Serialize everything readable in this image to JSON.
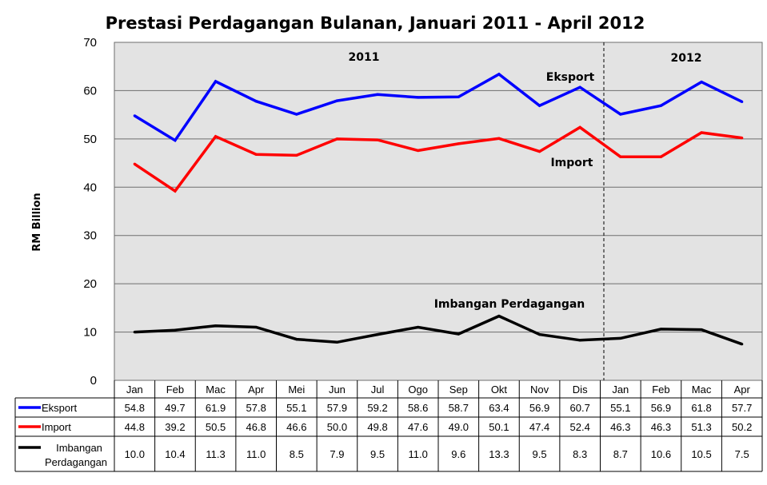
{
  "chart_data": {
    "type": "line",
    "title": "Prestasi Perdagangan Bulanan, Januari 2011 - April 2012",
    "ylabel": "RM Billion",
    "ylim": [
      0,
      70
    ],
    "yticks": [
      0,
      10,
      20,
      30,
      40,
      50,
      60,
      70
    ],
    "grid": true,
    "categories": [
      "Jan",
      "Feb",
      "Mac",
      "Apr",
      "Mei",
      "Jun",
      "Jul",
      "Ogo",
      "Sep",
      "Okt",
      "Nov",
      "Dis",
      "Jan",
      "Feb",
      "Mac",
      "Apr"
    ],
    "series": [
      {
        "name": "Eksport",
        "color": "#0000ff",
        "values": [
          54.8,
          49.7,
          61.9,
          57.8,
          55.1,
          57.9,
          59.2,
          58.6,
          58.7,
          63.4,
          56.9,
          60.7,
          55.1,
          56.9,
          61.8,
          57.7
        ],
        "labels": [
          "54.8",
          "49.7",
          "61.9",
          "57.8",
          "55.1",
          "57.9",
          "59.2",
          "58.6",
          "58.7",
          "63.4",
          "56.9",
          "60.7",
          "55.1",
          "56.9",
          "61.8",
          "57.7"
        ]
      },
      {
        "name": "Import",
        "color": "#ff0000",
        "values": [
          44.8,
          39.2,
          50.5,
          46.8,
          46.6,
          50.0,
          49.8,
          47.6,
          49.0,
          50.1,
          47.4,
          52.4,
          46.3,
          46.3,
          51.3,
          50.2
        ],
        "labels": [
          "44.8",
          "39.2",
          "50.5",
          "46.8",
          "46.6",
          "50.0",
          "49.8",
          "47.6",
          "49.0",
          "50.1",
          "47.4",
          "52.4",
          "46.3",
          "46.3",
          "51.3",
          "50.2"
        ]
      },
      {
        "name": "Imbangan Perdagangan",
        "color": "#000000",
        "values": [
          10.0,
          10.4,
          11.3,
          11.0,
          8.5,
          7.9,
          9.5,
          11.0,
          9.6,
          13.3,
          9.5,
          8.3,
          8.7,
          10.6,
          10.5,
          7.5
        ],
        "labels": [
          "10.0",
          "10.4",
          "11.3",
          "11.0",
          "8.5",
          "7.9",
          "9.5",
          "11.0",
          "9.6",
          "13.3",
          "9.5",
          "8.3",
          "8.7",
          "10.6",
          "10.5",
          "7.5"
        ]
      }
    ],
    "annotations": {
      "year_2011": "2011",
      "year_2012": "2012",
      "eksport": "Eksport",
      "import": "Import",
      "imbangan": "Imbangan Perdagangan"
    },
    "table_row_labels": [
      "Eksport",
      "Import",
      "Imbangan",
      "Perdagangan"
    ],
    "colors": {
      "plot_bg": "#e3e3e3",
      "grid": "#6e6e6e"
    }
  }
}
